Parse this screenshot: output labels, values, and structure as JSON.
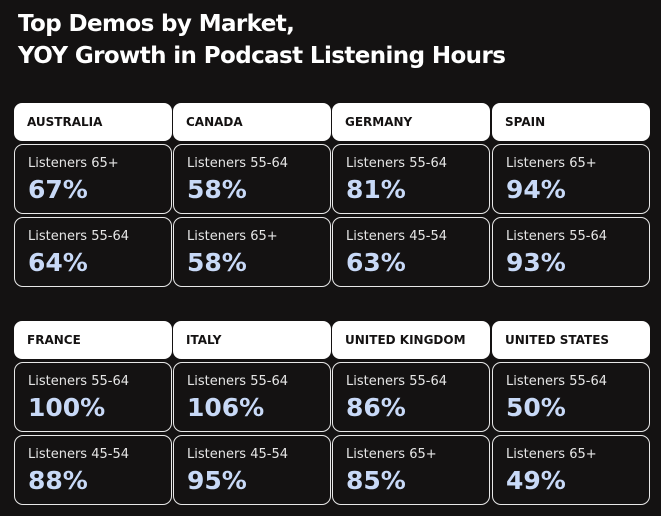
{
  "title_line1": "Top Demos by Market,",
  "title_line2": "YOY Growth in Podcast Listening Hours",
  "markets": [
    {
      "name": "AUSTRALIA",
      "stats": [
        {
          "label": "Listeners 65+",
          "value": "67%"
        },
        {
          "label": "Listeners 55-64",
          "value": "64%"
        }
      ]
    },
    {
      "name": "CANADA",
      "stats": [
        {
          "label": "Listeners 55-64",
          "value": "58%"
        },
        {
          "label": "Listeners 65+",
          "value": "58%"
        }
      ]
    },
    {
      "name": "GERMANY",
      "stats": [
        {
          "label": "Listeners 55-64",
          "value": "81%"
        },
        {
          "label": "Listeners 45-54",
          "value": "63%"
        }
      ]
    },
    {
      "name": "SPAIN",
      "stats": [
        {
          "label": "Listeners 65+",
          "value": "94%"
        },
        {
          "label": "Listeners 55-64",
          "value": "93%"
        }
      ]
    },
    {
      "name": "FRANCE",
      "stats": [
        {
          "label": "Listeners 55-64",
          "value": "100%"
        },
        {
          "label": "Listeners 45-54",
          "value": "88%"
        }
      ]
    },
    {
      "name": "ITALY",
      "stats": [
        {
          "label": "Listeners 55-64",
          "value": "106%"
        },
        {
          "label": "Listeners 45-54",
          "value": "95%"
        }
      ]
    },
    {
      "name": "UNITED KINGDOM",
      "stats": [
        {
          "label": "Listeners 55-64",
          "value": "86%"
        },
        {
          "label": "Listeners 65+",
          "value": "85%"
        }
      ]
    },
    {
      "name": "UNITED STATES",
      "stats": [
        {
          "label": "Listeners 55-64",
          "value": "50%"
        },
        {
          "label": "Listeners 65+",
          "value": "49%"
        }
      ]
    }
  ]
}
